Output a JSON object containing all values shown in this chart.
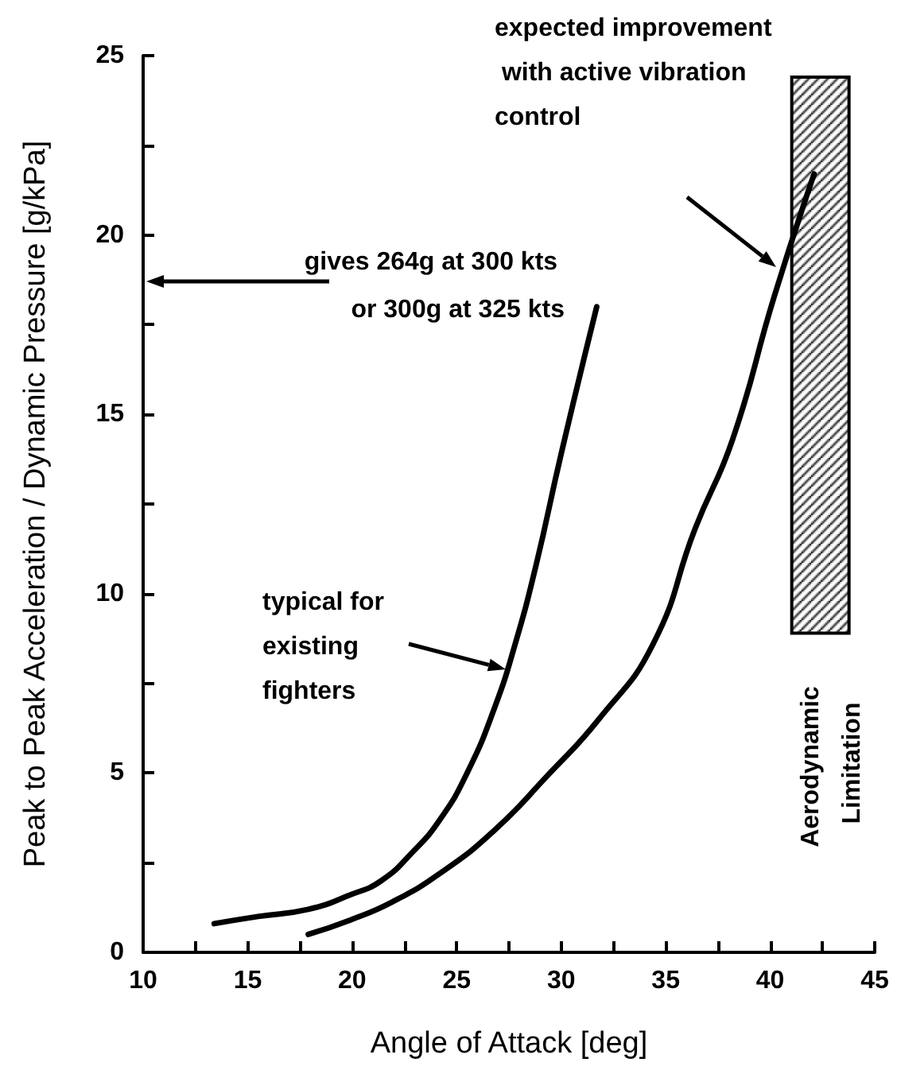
{
  "chart_data": {
    "type": "line",
    "xlabel": "Angle of Attack [deg]",
    "ylabel": "Peak to Peak Acceleration / Dynamic Pressure [g/kPa]",
    "xlim": [
      10,
      45
    ],
    "xticks": [
      10,
      {
        "value": 12.5,
        "label": null
      },
      15,
      {
        "value": 17.5,
        "label": null
      },
      20,
      {
        "value": 22.5,
        "label": null
      },
      25,
      {
        "value": 27.5,
        "label": null
      },
      30,
      {
        "value": 32.5,
        "label": null
      },
      35,
      {
        "value": 37.5,
        "label": null
      },
      40,
      {
        "value": 42.5,
        "label": null
      },
      45
    ],
    "ylim": [
      0,
      25
    ],
    "yticks": [
      0,
      {
        "value": 2.5,
        "label": null
      },
      5,
      {
        "value": 7.5,
        "label": null
      },
      10,
      {
        "value": 12.5,
        "label": null
      },
      15,
      {
        "value": 17.5,
        "label": null
      },
      20,
      {
        "value": 22.5,
        "label": null
      },
      25
    ],
    "grid": false,
    "marker": "none",
    "line_style": "solid",
    "series": [
      {
        "color": "#000000",
        "x": [
          13.4,
          15.5,
          17.9,
          19.9,
          21.4,
          22.9,
          24.2,
          25.5,
          26.8,
          27.8,
          28.8,
          30.0,
          31.7
        ],
        "values": [
          0.8,
          1.0,
          1.2,
          1.6,
          2.0,
          2.8,
          3.7,
          5.0,
          6.8,
          8.6,
          10.8,
          13.9,
          18.0
        ]
      },
      {
        "color": "#000000",
        "x": [
          17.9,
          19.9,
          21.9,
          24.2,
          26.8,
          29.3,
          31.8,
          34.4,
          36.4,
          38.2,
          40.2,
          42.1
        ],
        "values": [
          0.5,
          0.9,
          1.4,
          2.2,
          3.4,
          4.9,
          6.5,
          8.6,
          11.8,
          14.3,
          18.3,
          21.7
        ]
      },
      {
        "type": "bar",
        "color": "#000000",
        "x": [
          42.4
        ],
        "values": [
          15.5
        ],
        "base": [
          8.9
        ]
      }
    ],
    "annotations": [
      "expected improvement with active vibration control",
      "gives 264g at 300 kts or 300g at 325 kts",
      "typical for existing fighters",
      "Aerodynamic Limitation"
    ]
  }
}
